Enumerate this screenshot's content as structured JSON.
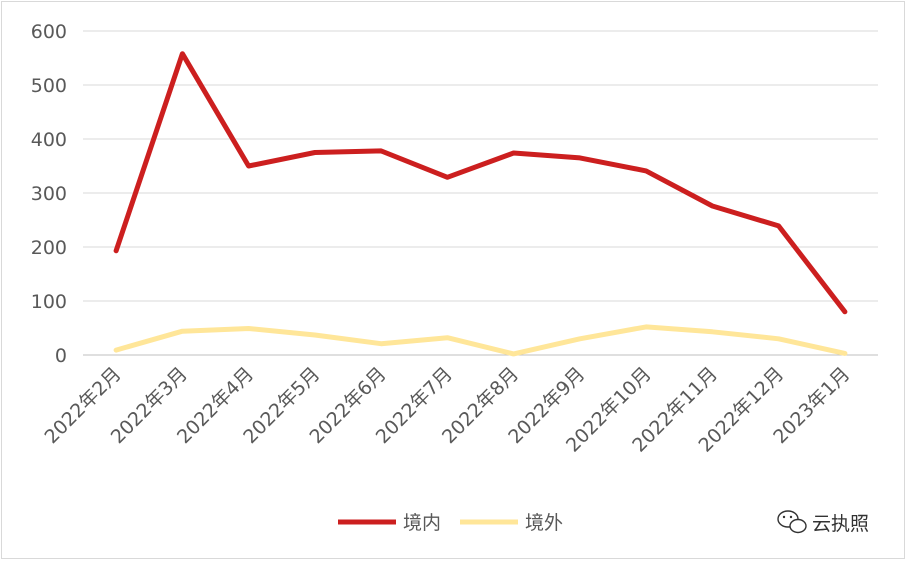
{
  "chart_data": {
    "type": "line",
    "categories": [
      "2022年2月",
      "2022年3月",
      "2022年4月",
      "2022年5月",
      "2022年6月",
      "2022年7月",
      "2022年8月",
      "2022年9月",
      "2022年10月",
      "2022年11月",
      "2022年12月",
      "2023年1月"
    ],
    "series": [
      {
        "name": "境内",
        "color": "#cc1f1f",
        "values": [
          193,
          558,
          350,
          375,
          378,
          329,
          374,
          365,
          341,
          276,
          239,
          80
        ]
      },
      {
        "name": "境外",
        "color": "#ffe699",
        "values": [
          9,
          44,
          49,
          37,
          21,
          32,
          2,
          30,
          52,
          43,
          30,
          3
        ]
      }
    ],
    "yticks": [
      0,
      100,
      200,
      300,
      400,
      500,
      600
    ],
    "ylim": [
      0,
      600
    ],
    "grid": true,
    "legend": "bottom-center"
  },
  "watermark": {
    "text": "云执照",
    "icon": "wechat-icon"
  }
}
